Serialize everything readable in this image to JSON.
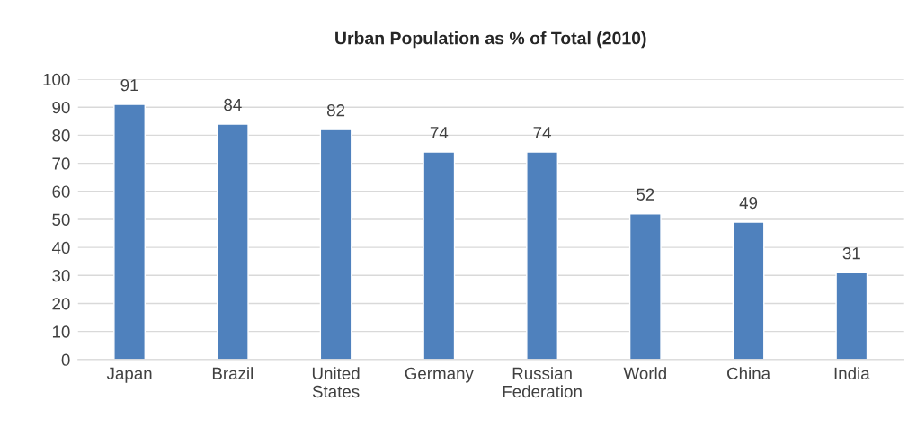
{
  "chart_data": {
    "type": "bar",
    "title": "Urban Population as % of Total (2010)",
    "categories": [
      "Japan",
      "Brazil",
      "United States",
      "Germany",
      "Russian Federation",
      "World",
      "China",
      "India"
    ],
    "values": [
      91,
      84,
      82,
      74,
      74,
      52,
      49,
      31
    ],
    "color": "#4f81bd",
    "ylim": [
      0,
      100
    ],
    "yticks": [
      0,
      10,
      20,
      30,
      40,
      50,
      60,
      70,
      80,
      90,
      100
    ],
    "grid": "y",
    "data_labels": true
  }
}
